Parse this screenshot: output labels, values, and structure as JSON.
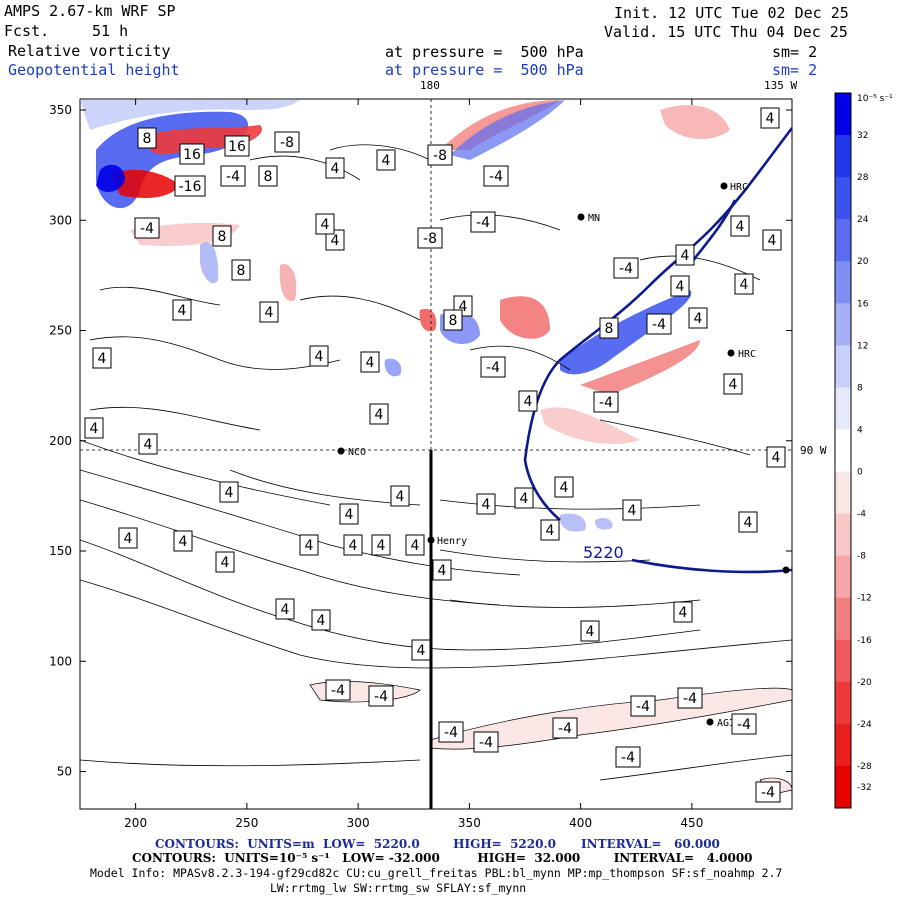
{
  "header": {
    "model": "AMPS 2.67-km WRF SP",
    "fcst_label": "Fcst.",
    "fcst_value": "51 h",
    "init": "Init. 12 UTC Tue 02 Dec 25",
    "valid": "Valid. 15 UTC Thu 04 Dec 25",
    "field1": "Relative vorticity",
    "field2": "Geopotential height",
    "pressure1": "at pressure =  500 hPa",
    "pressure2": "at pressure =  500 hPa",
    "sm1": "sm= 2",
    "sm2": "sm= 2",
    "lon_top_180": "180",
    "lon_top_135": "135 W",
    "lat_90": "90 W"
  },
  "footer": {
    "line1": "CONTOURS:  UNITS=m  LOW=  5220.0        HIGH=  5220.0      INTERVAL=   60.000",
    "line2": "CONTOURS:  UNITS=10⁻⁵ s⁻¹   LOW= -32.000         HIGH=  32.000        INTERVAL=   4.0000",
    "line3": "Model Info: MPASv8.2.3-194-gf29cd82c CU:cu_grell_freitas PBL:bl_mynn MP:mp_thompson SF:sf_noahmp 2.7",
    "line4": "LW:rrtmg_lw SW:rrtmg_sw SFLAY:sf_mynn"
  },
  "colorbar": {
    "unit_label": "10⁻⁵ s⁻¹",
    "ticks": [
      "32",
      "28",
      "24",
      "20",
      "16",
      "12",
      "8",
      "4",
      "0",
      "-4",
      "-8",
      "-12",
      "-16",
      "-20",
      "-24",
      "-28",
      "-32"
    ],
    "colors": [
      "#0000e6",
      "#2038ea",
      "#3a52ee",
      "#5a6cf0",
      "#7f8ef2",
      "#a6b0f5",
      "#c8cff8",
      "#e6e9fb",
      "#ffffff",
      "#fbe6e6",
      "#f8c8c8",
      "#f5a6a6",
      "#f27f7f",
      "#f05a5a",
      "#ee3a3a",
      "#ea2020",
      "#e60000"
    ]
  },
  "stations": [
    "NCO",
    "Henry",
    "HRC",
    "HRC",
    "AGI",
    "MN"
  ],
  "contour_labels": {
    "height": "5220",
    "vort": [
      "4",
      "-4",
      "8",
      "-8",
      "-16",
      "16"
    ]
  },
  "chart_data": {
    "type": "heatmap",
    "title": "Relative vorticity / Geopotential height at 500 hPa",
    "xlabel": "",
    "ylabel": "",
    "xlim": [
      175,
      495
    ],
    "ylim": [
      33,
      355
    ],
    "xticks": [
      200,
      250,
      300,
      350,
      400,
      450
    ],
    "yticks": [
      50,
      100,
      150,
      200,
      250,
      300,
      350
    ],
    "colorbar_range": [
      -32,
      32
    ],
    "colorbar_interval": 4,
    "height_contour_value": 5220,
    "height_contour_interval": 60,
    "vorticity_contour_interval": 4,
    "station_points": [
      {
        "name": "NCO",
        "x": 293,
        "y": 195
      },
      {
        "name": "Henry",
        "x": 333,
        "y": 155
      },
      {
        "name": "HRC",
        "x": 468,
        "y": 238
      },
      {
        "name": "HRC",
        "x": 468,
        "y": 314
      },
      {
        "name": "AGI",
        "x": 460,
        "y": 73
      },
      {
        "name": "MN",
        "x": 402,
        "y": 300
      }
    ],
    "dashed_lines": {
      "vertical_x": 332,
      "horizontal_y": 196
    },
    "cross_section_x": 333
  }
}
